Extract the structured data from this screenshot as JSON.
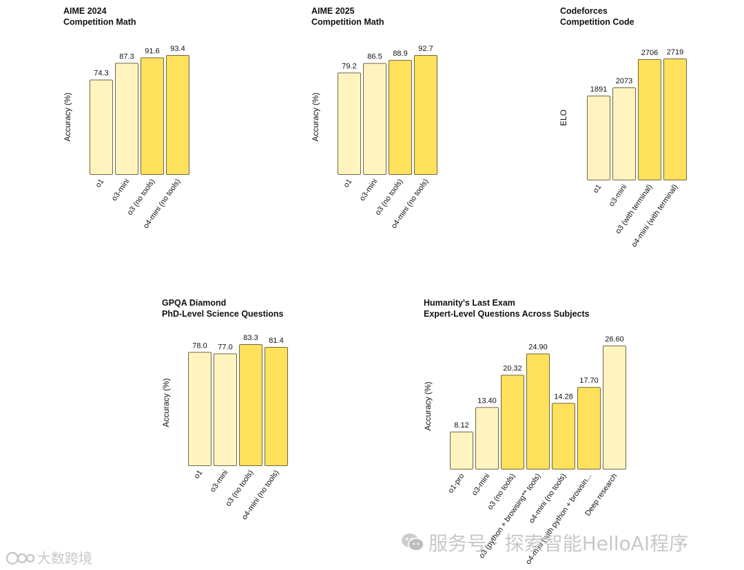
{
  "colors": {
    "light": "#FFF4C0",
    "dark": "#FFE15C",
    "stroke": "#6f6440",
    "text": "#111111"
  },
  "chart_data": [
    {
      "type": "bar",
      "title": "AIME 2024",
      "subtitle": "Competition Math",
      "ylabel": "Accuracy (%)",
      "categories": [
        "o1",
        "o3-mini",
        "o3 (no tools)",
        "o4-mini (no tools)"
      ],
      "values": [
        74.3,
        87.3,
        91.6,
        93.4
      ],
      "value_labels": [
        "74.3",
        "87.3",
        "91.6",
        "93.4"
      ],
      "shades": [
        "light",
        "light",
        "dark",
        "dark"
      ],
      "ylim": [
        0,
        100
      ],
      "grid": false
    },
    {
      "type": "bar",
      "title": "AIME 2025",
      "subtitle": "Competition Math",
      "ylabel": "Accuracy (%)",
      "categories": [
        "o1",
        "o3-mini",
        "o3 (no tools)",
        "o4-mini (no tools)"
      ],
      "values": [
        79.2,
        86.5,
        88.9,
        92.7
      ],
      "value_labels": [
        "79.2",
        "86.5",
        "88.9",
        "92.7"
      ],
      "shades": [
        "light",
        "light",
        "dark",
        "dark"
      ],
      "ylim": [
        0,
        100
      ],
      "grid": false
    },
    {
      "type": "bar",
      "title": "Codeforces",
      "subtitle": "Competition Code",
      "ylabel": "ELO",
      "categories": [
        "o1",
        "o3-mini",
        "o3 (with terminal)",
        "o4-mini (with terminal)"
      ],
      "values": [
        1891,
        2073,
        2706,
        2719
      ],
      "value_labels": [
        "1891",
        "2073",
        "2706",
        "2719"
      ],
      "shades": [
        "light",
        "light",
        "dark",
        "dark"
      ],
      "ylim": [
        0,
        3000
      ],
      "grid": false
    },
    {
      "type": "bar",
      "title": "GPQA Diamond",
      "subtitle": "PhD-Level Science Questions",
      "ylabel": "Accuracy (%)",
      "categories": [
        "o1",
        "o3-mini",
        "o3 (no tools)",
        "o4-mini (no tools)"
      ],
      "values": [
        78.0,
        77.0,
        83.3,
        81.4
      ],
      "value_labels": [
        "78.0",
        "77.0",
        "83.3",
        "81.4"
      ],
      "shades": [
        "light",
        "light",
        "dark",
        "dark"
      ],
      "ylim": [
        0,
        100
      ],
      "grid": false
    },
    {
      "type": "bar",
      "title": "Humanity's Last Exam",
      "subtitle": "Expert-Level Questions Across Subjects",
      "ylabel": "Accuracy (%)",
      "categories": [
        "o1-pro",
        "o3-mini",
        "o3 (no tools)",
        "o3 (python + browsing** tools)",
        "o4-mini (no tools)",
        "o4-mini (with python + browsin...",
        "Deep research"
      ],
      "values": [
        8.12,
        13.4,
        20.32,
        24.9,
        14.28,
        17.7,
        26.6
      ],
      "value_labels": [
        "8.12",
        "13.40",
        "20.32",
        "24.90",
        "14.28",
        "17.70",
        "26.60"
      ],
      "shades": [
        "light",
        "light",
        "dark",
        "dark",
        "dark",
        "dark",
        "light"
      ],
      "ylim": [
        0,
        30
      ],
      "grid": false
    }
  ],
  "watermarks": {
    "right": "服务号 · 探索智能HelloAI程序",
    "left": "大数跨境"
  }
}
